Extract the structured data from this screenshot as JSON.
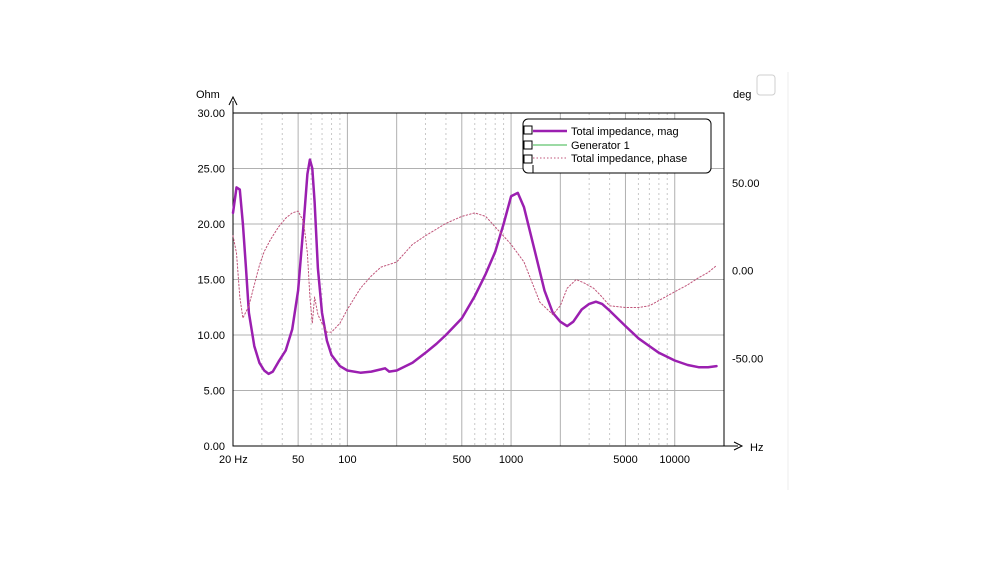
{
  "chart_data": {
    "type": "line",
    "xscale": "log",
    "x_range": [
      20,
      20000
    ],
    "y_left_range": [
      0,
      30
    ],
    "y_right_range": [
      -100,
      90
    ],
    "grid": true,
    "y_left_unit": "Ohm",
    "y_right_unit": "deg",
    "x_unit": "Hz",
    "x_ticks": [
      {
        "value": 20,
        "label": "20 Hz"
      },
      {
        "value": 50,
        "label": "50"
      },
      {
        "value": 100,
        "label": "100"
      },
      {
        "value": 500,
        "label": "500"
      },
      {
        "value": 1000,
        "label": "1000"
      },
      {
        "value": 5000,
        "label": "5000"
      },
      {
        "value": 10000,
        "label": "10000"
      }
    ],
    "y_left_ticks": [
      {
        "value": 0,
        "label": "0.00"
      },
      {
        "value": 5,
        "label": "5.00"
      },
      {
        "value": 10,
        "label": "10.00"
      },
      {
        "value": 15,
        "label": "15.00"
      },
      {
        "value": 20,
        "label": "20.00"
      },
      {
        "value": 25,
        "label": "25.00"
      },
      {
        "value": 30,
        "label": "30.00"
      }
    ],
    "y_right_ticks": [
      {
        "value": 50,
        "label": "50.00"
      },
      {
        "value": 0,
        "label": "0.00"
      },
      {
        "value": -50,
        "label": "-50.00"
      }
    ],
    "legend_position": "top-right",
    "series": [
      {
        "name": "Total impedance, mag",
        "axis": "left",
        "color": "#9b1fb0",
        "style": "solid",
        "x": [
          20,
          21,
          22,
          23,
          24,
          25,
          27,
          29,
          31,
          33,
          35,
          38,
          42,
          46,
          50,
          54,
          57,
          59,
          61,
          63,
          66,
          70,
          75,
          80,
          90,
          100,
          120,
          140,
          160,
          170,
          180,
          200,
          250,
          300,
          350,
          400,
          500,
          600,
          700,
          800,
          900,
          1000,
          1100,
          1200,
          1400,
          1600,
          1800,
          2000,
          2200,
          2400,
          2700,
          3000,
          3300,
          3600,
          4000,
          5000,
          6000,
          7000,
          8000,
          10000,
          12000,
          14000,
          16000,
          18000
        ],
        "values": [
          21,
          23.3,
          23.1,
          20,
          16,
          12,
          9,
          7.5,
          6.8,
          6.5,
          6.7,
          7.6,
          8.6,
          10.5,
          14,
          20,
          24.5,
          25.8,
          25,
          22,
          16,
          12,
          9.5,
          8.2,
          7.2,
          6.8,
          6.6,
          6.7,
          6.9,
          7.0,
          6.7,
          6.8,
          7.5,
          8.4,
          9.2,
          10,
          11.5,
          13.5,
          15.5,
          17.5,
          20,
          22.5,
          22.8,
          21.5,
          17.5,
          14,
          12,
          11.2,
          10.8,
          11.2,
          12.3,
          12.8,
          13,
          12.8,
          12.2,
          10.8,
          9.7,
          9,
          8.4,
          7.7,
          7.3,
          7.1,
          7.1,
          7.2
        ]
      },
      {
        "name": "Generator 1",
        "axis": "left",
        "color": "#39b54a",
        "style": "solid",
        "x": [],
        "values": []
      },
      {
        "name": "Total impedance, phase",
        "axis": "right",
        "color": "#c0557a",
        "style": "dotted",
        "x": [
          20,
          21,
          22,
          23,
          25,
          27,
          29,
          31,
          34,
          38,
          42,
          46,
          50,
          54,
          57,
          59,
          61,
          63,
          66,
          70,
          75,
          80,
          90,
          100,
          120,
          140,
          160,
          200,
          250,
          300,
          400,
          500,
          600,
          700,
          800,
          1000,
          1200,
          1500,
          1800,
          2000,
          2200,
          2500,
          2800,
          3200,
          3600,
          4000,
          5000,
          6000,
          7000,
          8000,
          10000,
          12000,
          14000,
          16000,
          18000
        ],
        "values": [
          20,
          10,
          -15,
          -27,
          -20,
          -8,
          3,
          11,
          18,
          25,
          30,
          33,
          34,
          28,
          10,
          -15,
          -30,
          -15,
          -25,
          -30,
          -35,
          -35,
          -30,
          -22,
          -10,
          -3,
          2,
          5,
          15,
          20,
          27,
          31,
          33,
          31,
          25,
          15,
          5,
          -18,
          -25,
          -20,
          -10,
          -5,
          -7,
          -10,
          -15,
          -20,
          -21,
          -21,
          -20,
          -17,
          -12,
          -8,
          -4,
          -1,
          3
        ]
      }
    ]
  }
}
